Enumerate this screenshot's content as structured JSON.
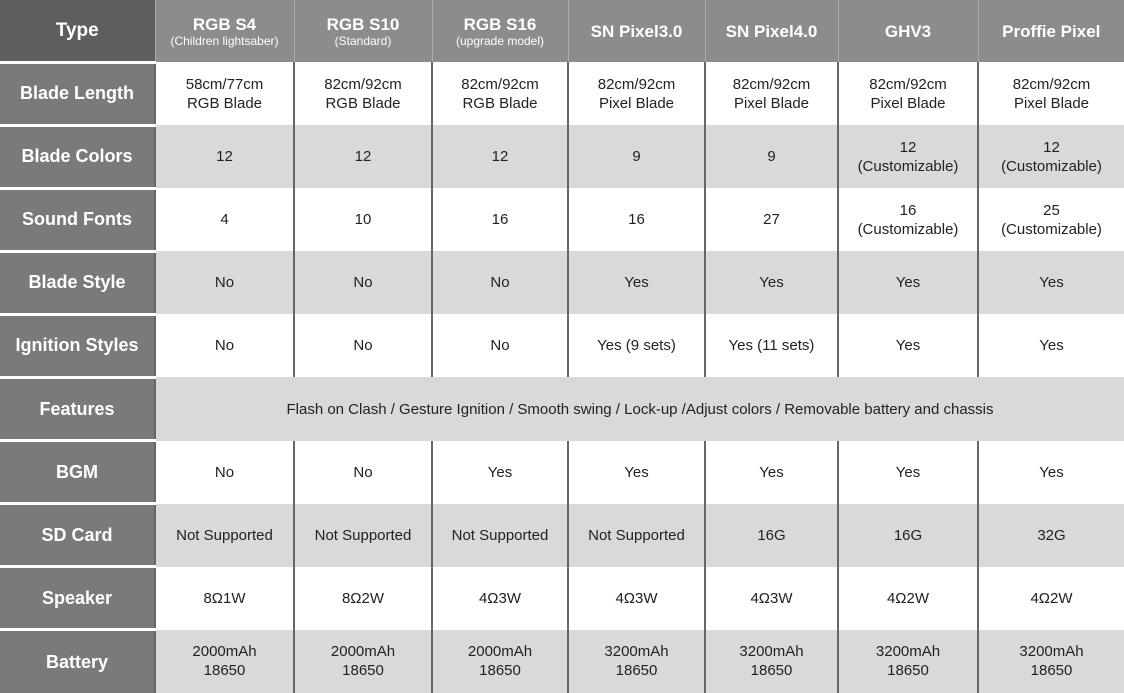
{
  "header": {
    "corner": "Type",
    "columns": [
      {
        "name": "RGB S4",
        "sub": "(Children lightsaber)"
      },
      {
        "name": "RGB S10",
        "sub": "(Standard)"
      },
      {
        "name": "RGB S16",
        "sub": "(upgrade model)"
      },
      {
        "name": "SN Pixel3.0",
        "sub": ""
      },
      {
        "name": "SN Pixel4.0",
        "sub": ""
      },
      {
        "name": "GHV3",
        "sub": ""
      },
      {
        "name": "Proffie Pixel",
        "sub": ""
      }
    ]
  },
  "rows": [
    {
      "label": "Blade Length",
      "cells": [
        [
          "58cm/77cm",
          "RGB Blade"
        ],
        [
          "82cm/92cm",
          "RGB Blade"
        ],
        [
          "82cm/92cm",
          "RGB Blade"
        ],
        [
          "82cm/92cm",
          "Pixel Blade"
        ],
        [
          "82cm/92cm",
          "Pixel Blade"
        ],
        [
          "82cm/92cm",
          "Pixel Blade"
        ],
        [
          "82cm/92cm",
          "Pixel Blade"
        ]
      ]
    },
    {
      "label": "Blade Colors",
      "cells": [
        [
          "12"
        ],
        [
          "12"
        ],
        [
          "12"
        ],
        [
          "9"
        ],
        [
          "9"
        ],
        [
          "12",
          "(Customizable)"
        ],
        [
          "12",
          "(Customizable)"
        ]
      ]
    },
    {
      "label": "Sound Fonts",
      "cells": [
        [
          "4"
        ],
        [
          "10"
        ],
        [
          "16"
        ],
        [
          "16"
        ],
        [
          "27"
        ],
        [
          "16",
          "(Customizable)"
        ],
        [
          "25",
          "(Customizable)"
        ]
      ]
    },
    {
      "label": "Blade Style",
      "cells": [
        [
          "No"
        ],
        [
          "No"
        ],
        [
          "No"
        ],
        [
          "Yes"
        ],
        [
          "Yes"
        ],
        [
          "Yes"
        ],
        [
          "Yes"
        ]
      ]
    },
    {
      "label": "Ignition Styles",
      "cells": [
        [
          "No"
        ],
        [
          "No"
        ],
        [
          "No"
        ],
        [
          "Yes (9 sets)"
        ],
        [
          "Yes (11 sets)"
        ],
        [
          "Yes"
        ],
        [
          "Yes"
        ]
      ]
    },
    {
      "label": "Features",
      "full": "Flash on Clash / Gesture Ignition / Smooth swing / Lock-up /Adjust colors / Removable battery and chassis"
    },
    {
      "label": "BGM",
      "cells": [
        [
          "No"
        ],
        [
          "No"
        ],
        [
          "Yes"
        ],
        [
          "Yes"
        ],
        [
          "Yes"
        ],
        [
          "Yes"
        ],
        [
          "Yes"
        ]
      ]
    },
    {
      "label": "SD Card",
      "cells": [
        [
          "Not Supported"
        ],
        [
          "Not Supported"
        ],
        [
          "Not Supported"
        ],
        [
          "Not Supported"
        ],
        [
          "16G"
        ],
        [
          "16G"
        ],
        [
          "32G"
        ]
      ]
    },
    {
      "label": "Speaker",
      "cells": [
        [
          "8Ω1W"
        ],
        [
          "8Ω2W"
        ],
        [
          "4Ω3W"
        ],
        [
          "4Ω3W"
        ],
        [
          "4Ω3W"
        ],
        [
          "4Ω2W"
        ],
        [
          "4Ω2W"
        ]
      ]
    },
    {
      "label": "Battery",
      "cells": [
        [
          "2000mAh",
          "18650"
        ],
        [
          "2000mAh",
          "18650"
        ],
        [
          "2000mAh",
          "18650"
        ],
        [
          "3200mAh",
          "18650"
        ],
        [
          "3200mAh",
          "18650"
        ],
        [
          "3200mAh",
          "18650"
        ],
        [
          "3200mAh",
          "18650"
        ]
      ]
    }
  ]
}
